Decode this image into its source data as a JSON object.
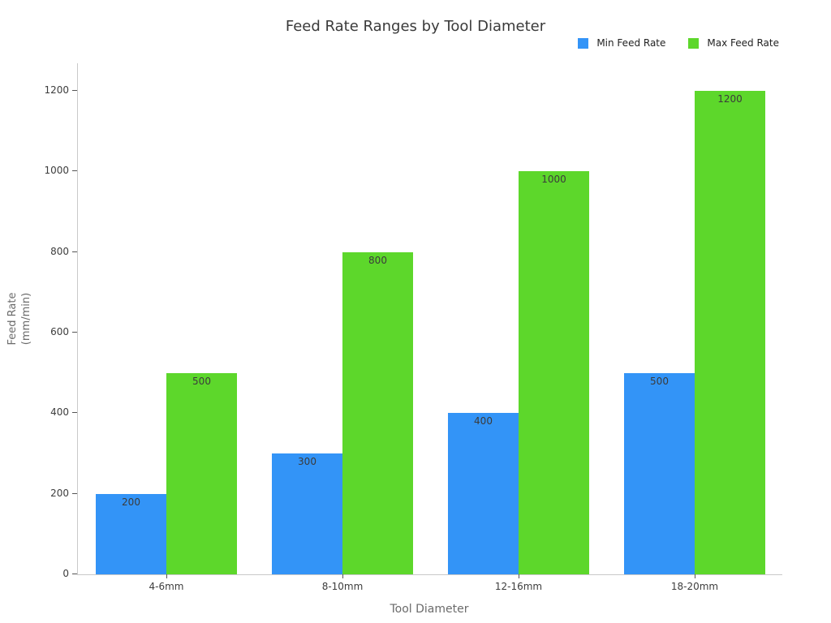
{
  "chart_data": {
    "type": "bar",
    "title": "Feed Rate Ranges by Tool Diameter",
    "categories": [
      "4-6mm",
      "8-10mm",
      "12-16mm",
      "18-20mm"
    ],
    "series": [
      {
        "name": "Min Feed Rate",
        "color": "#3394F7",
        "values": [
          200,
          300,
          400,
          500
        ]
      },
      {
        "name": "Max Feed Rate",
        "color": "#5DD72B",
        "values": [
          500,
          800,
          1000,
          1200
        ]
      }
    ],
    "bar_value_labels": [
      [
        "200",
        "300",
        "400",
        "500"
      ],
      [
        "500",
        "800",
        "1000",
        "1200"
      ]
    ],
    "xlabel": "Tool Diameter",
    "ylabel_lines": [
      "Feed Rate",
      "(mm/min)"
    ],
    "yticks": [
      "0",
      "200",
      "400",
      "600",
      "800",
      "1000",
      "1200"
    ],
    "ytick_values": [
      0,
      200,
      400,
      600,
      800,
      1000,
      1200
    ],
    "ylim": [
      0,
      1268
    ],
    "grid": false,
    "legend_position": "top-right",
    "plot_background": "#ffffff"
  },
  "colors": {
    "title_text": "#3a3a3a",
    "tick_text": "#3d3d3d",
    "axis_title_text": "#6b6b6b",
    "legend_text": "#222222",
    "bar_label_text": "#3b3b3b",
    "spine": "#c9c9c9",
    "tick_mark": "#555555",
    "background": "#ffffff"
  }
}
